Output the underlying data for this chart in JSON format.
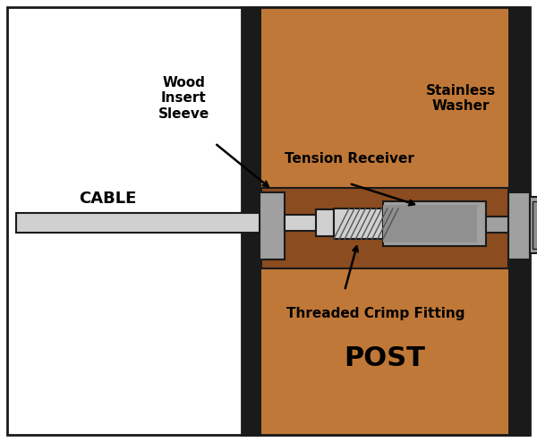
{
  "bg_color": "#ffffff",
  "border_color": "#1a1a1a",
  "wood_color": "#c07838",
  "wood_dark_color": "#8b4c20",
  "wood_stripe_color": "#1a1a1a",
  "metal_gray": "#a0a0a0",
  "metal_light": "#d0d0d0",
  "metal_mid": "#909090",
  "metal_dark": "#707070",
  "labels": {
    "cable": "CABLE",
    "wood_insert": "Wood\nInsert\nSleeve",
    "tension_receiver": "Tension Receiver",
    "stainless_washer": "Stainless\nWasher",
    "threaded_crimp": "Threaded Crimp Fitting",
    "post": "POST"
  }
}
